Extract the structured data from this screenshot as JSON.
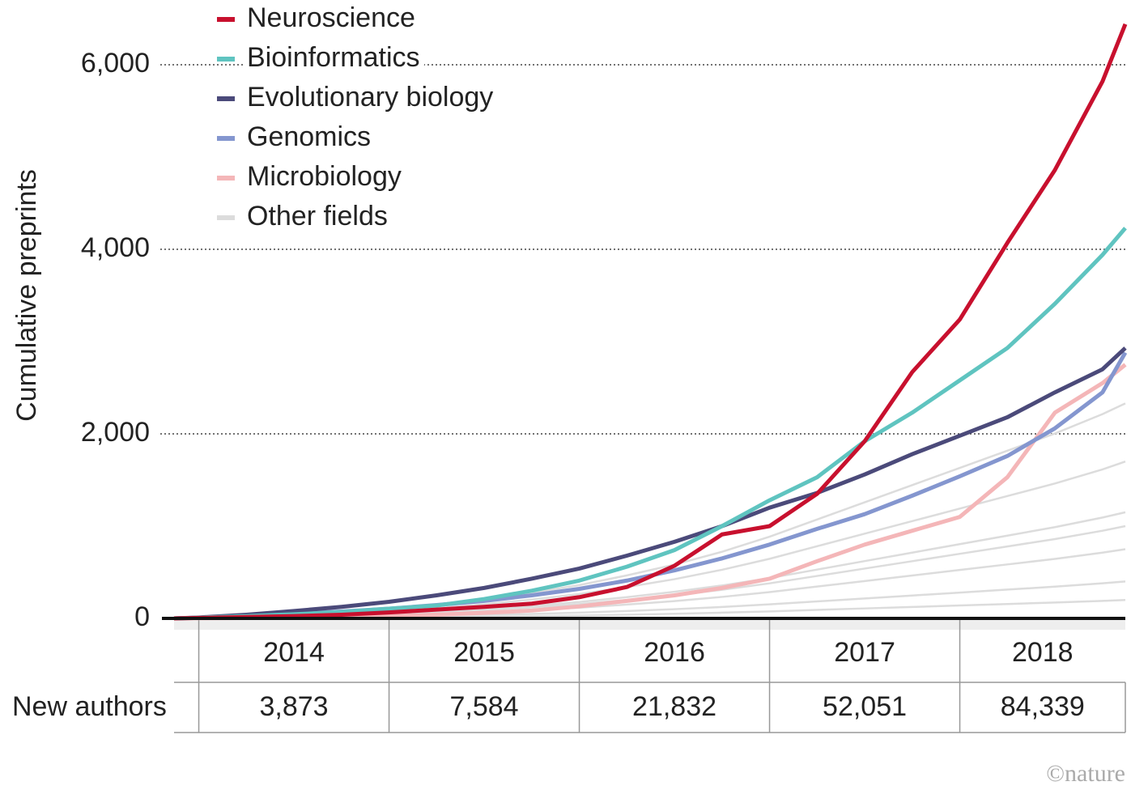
{
  "chart_data": {
    "type": "line",
    "ylabel": "Cumulative preprints",
    "x": [
      2013.87,
      2014.0,
      2014.25,
      2014.5,
      2014.75,
      2015.0,
      2015.25,
      2015.5,
      2015.75,
      2016.0,
      2016.25,
      2016.5,
      2016.75,
      2017.0,
      2017.25,
      2017.5,
      2017.75,
      2018.0,
      2018.25,
      2018.5,
      2018.75,
      2018.87
    ],
    "xlim": [
      2013.87,
      2018.87
    ],
    "xticks": [
      2014,
      2015,
      2016,
      2017,
      2018
    ],
    "ylim": [
      0,
      6500
    ],
    "yticks": [
      0,
      {
        "value": 2000,
        "label": "2,000"
      },
      {
        "value": 4000,
        "label": "4,000"
      },
      {
        "value": 6000,
        "label": "6,000"
      }
    ],
    "grid": true,
    "series": [
      {
        "name": "Neuroscience",
        "color": "#c8102e",
        "values": [
          0,
          5,
          15,
          25,
          40,
          65,
          95,
          125,
          160,
          230,
          340,
          570,
          910,
          1000,
          1350,
          1920,
          2670,
          3240,
          4070,
          4860,
          5820,
          6440
        ]
      },
      {
        "name": "Bioinformatics",
        "color": "#5fc4c0",
        "values": [
          0,
          8,
          25,
          45,
          70,
          105,
          140,
          210,
          300,
          410,
          560,
          740,
          1000,
          1280,
          1530,
          1920,
          2230,
          2580,
          2930,
          3410,
          3940,
          4230
        ]
      },
      {
        "name": "Evolutionary biology",
        "color": "#4b4a7a",
        "values": [
          0,
          10,
          40,
          80,
          125,
          180,
          250,
          330,
          430,
          540,
          680,
          830,
          1000,
          1200,
          1360,
          1560,
          1780,
          1980,
          2180,
          2450,
          2700,
          2930
        ]
      },
      {
        "name": "Genomics",
        "color": "#8496cf",
        "values": [
          0,
          8,
          30,
          50,
          75,
          105,
          145,
          190,
          250,
          320,
          410,
          520,
          650,
          800,
          970,
          1130,
          1330,
          1540,
          1760,
          2060,
          2450,
          2880
        ]
      },
      {
        "name": "Microbiology",
        "color": "#f4b6b8",
        "values": [
          0,
          2,
          4,
          8,
          15,
          25,
          40,
          60,
          85,
          130,
          190,
          250,
          330,
          430,
          620,
          800,
          950,
          1100,
          1530,
          2230,
          2550,
          2750
        ]
      }
    ],
    "other_fields": {
      "name": "Other fields",
      "color": "#dcdcdc",
      "lines": [
        [
          0,
          7,
          23,
          47,
          70,
          105,
          151,
          210,
          280,
          361,
          466,
          583,
          722,
          885,
          1072,
          1258,
          1445,
          1631,
          1817,
          2004,
          2214,
          2330
        ],
        [
          0,
          5,
          17,
          34,
          51,
          77,
          111,
          153,
          204,
          264,
          340,
          425,
          527,
          646,
          782,
          918,
          1054,
          1190,
          1326,
          1462,
          1615,
          1700
        ],
        [
          0,
          3,
          12,
          23,
          35,
          52,
          75,
          104,
          138,
          178,
          230,
          288,
          357,
          437,
          529,
          621,
          713,
          805,
          897,
          989,
          1093,
          1150
        ],
        [
          0,
          3,
          10,
          20,
          30,
          45,
          65,
          90,
          120,
          155,
          200,
          250,
          310,
          380,
          460,
          540,
          620,
          700,
          780,
          860,
          950,
          1000
        ],
        [
          0,
          2,
          8,
          15,
          23,
          34,
          49,
          68,
          90,
          116,
          150,
          188,
          233,
          285,
          345,
          405,
          465,
          525,
          585,
          645,
          713,
          750
        ],
        [
          0,
          1,
          4,
          8,
          12,
          18,
          26,
          36,
          48,
          62,
          80,
          100,
          124,
          152,
          184,
          216,
          248,
          280,
          312,
          344,
          380,
          400
        ],
        [
          0,
          1,
          2,
          4,
          6,
          9,
          13,
          18,
          24,
          31,
          40,
          50,
          62,
          76,
          92,
          108,
          124,
          140,
          156,
          172,
          190,
          200
        ]
      ]
    },
    "new_authors": {
      "label": "New authors",
      "values": [
        3873,
        7584,
        21832,
        52051,
        84339
      ],
      "value_labels": [
        "3,873",
        "7,584",
        "21,832",
        "52,051",
        "84,339"
      ]
    },
    "credit": "©nature"
  }
}
